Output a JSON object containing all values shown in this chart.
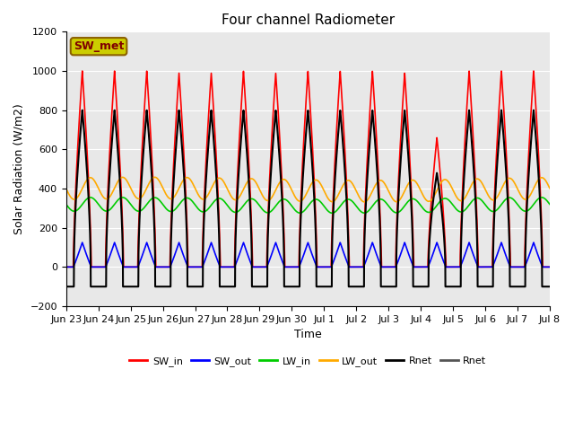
{
  "title": "Four channel Radiometer",
  "xlabel": "Time",
  "ylabel": "Solar Radiation (W/m2)",
  "ylim": [
    -200,
    1200
  ],
  "yticks": [
    -200,
    0,
    200,
    400,
    600,
    800,
    1000,
    1200
  ],
  "background_color": "#e8e8e8",
  "legend_label": "SW_met",
  "legend_box_facecolor": "#cccc00",
  "legend_box_edgecolor": "#8B6000",
  "legend_text_color": "#800000",
  "colors": {
    "SW_in": "#ff0000",
    "SW_out": "#0000ff",
    "LW_in": "#00cc00",
    "LW_out": "#ffaa00",
    "Rnet": "#000000",
    "Rnet2": "#555555"
  },
  "line_widths": {
    "SW_in": 1.2,
    "SW_out": 1.2,
    "LW_in": 1.2,
    "LW_out": 1.2,
    "Rnet": 1.5
  },
  "x_tick_labels": [
    "Jun 23",
    "Jun 24",
    "Jun 25",
    "Jun 26",
    "Jun 27",
    "Jun 28",
    "Jun 29",
    "Jun 30",
    "Jul 1",
    "Jul 2",
    "Jul 3",
    "Jul 4",
    "Jul 5",
    "Jul 6",
    "Jul 7",
    "Jul 8"
  ],
  "x_tick_positions": [
    0,
    1,
    2,
    3,
    4,
    5,
    6,
    7,
    8,
    9,
    10,
    11,
    12,
    13,
    14,
    15
  ],
  "SW_in_peaks": [
    1000,
    1000,
    1000,
    990,
    990,
    1000,
    990,
    1000,
    1000,
    1000,
    990,
    660,
    1000,
    1000,
    1000
  ],
  "LW_in_base": 315,
  "LW_out_base": 395,
  "Rnet_peaks": [
    800,
    800,
    800,
    800,
    800,
    800,
    800,
    800,
    800,
    800,
    800,
    480,
    800,
    800,
    800
  ]
}
